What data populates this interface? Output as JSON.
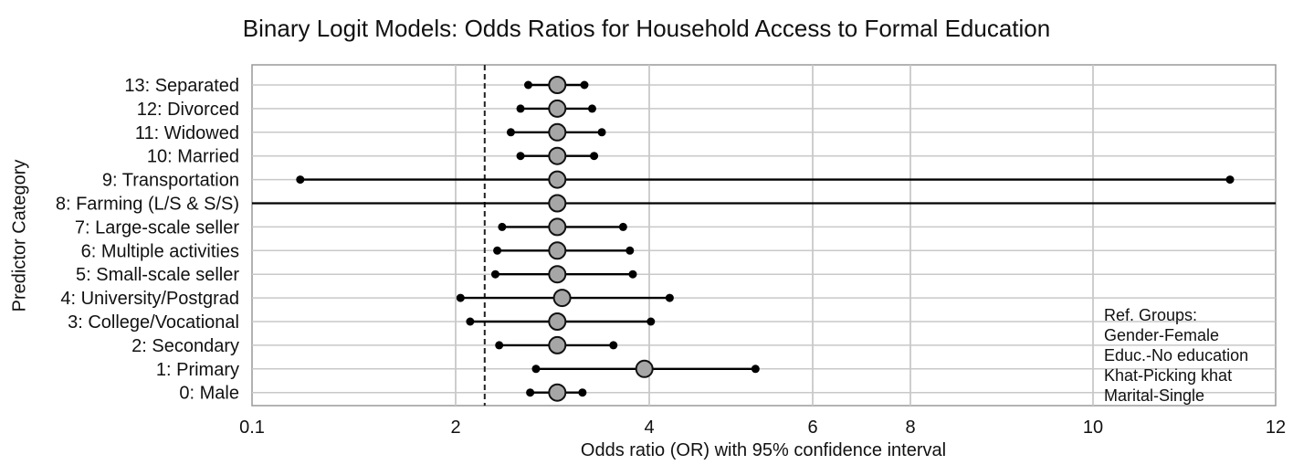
{
  "chart_data": {
    "type": "forest",
    "title": "Binary Logit Models: Odds Ratios for Household Access to Formal Education",
    "xlabel": "Odds ratio (OR) with 95% confidence interval",
    "ylabel": "Predictor Category",
    "x_ticks": [
      "0.1",
      "2",
      "4",
      "6",
      "8",
      "10",
      "12"
    ],
    "xlim": [
      0.1,
      12
    ],
    "reference_line": 2.3,
    "grid": true,
    "categories": [
      "13: Separated",
      "12: Divorced",
      "11: Widowed",
      "10: Married",
      "9: Transportation",
      "8: Farming (L/S & S/S)",
      "7: Large-scale seller",
      "6: Multiple activities",
      "5: Small-scale seller",
      "4: University/Postgrad",
      "3: College/Vocational",
      "2: Secondary",
      "1: Primary",
      "0: Male"
    ],
    "or": [
      3.05,
      3.05,
      3.05,
      3.05,
      3.05,
      3.05,
      3.05,
      3.05,
      3.05,
      3.1,
      3.05,
      3.05,
      3.95,
      3.05
    ],
    "lower": [
      2.75,
      2.67,
      2.57,
      2.67,
      0.55,
      null,
      2.48,
      2.43,
      2.41,
      2.05,
      2.15,
      2.45,
      2.83,
      2.77
    ],
    "upper": [
      3.33,
      3.41,
      3.51,
      3.43,
      11.5,
      null,
      3.73,
      3.8,
      3.83,
      4.25,
      4.02,
      3.63,
      5.3,
      3.31
    ],
    "full_span_row": "8: Farming (L/S & S/S)",
    "annotation": [
      "Ref. Groups:",
      "Gender-Female",
      "Educ.-No education",
      "Khat-Picking khat",
      "Marital-Single"
    ],
    "colors": {
      "point_fill": "#a6a6a6",
      "line": "#000000",
      "grid": "#c8c8c8",
      "axis": "#555555"
    }
  }
}
